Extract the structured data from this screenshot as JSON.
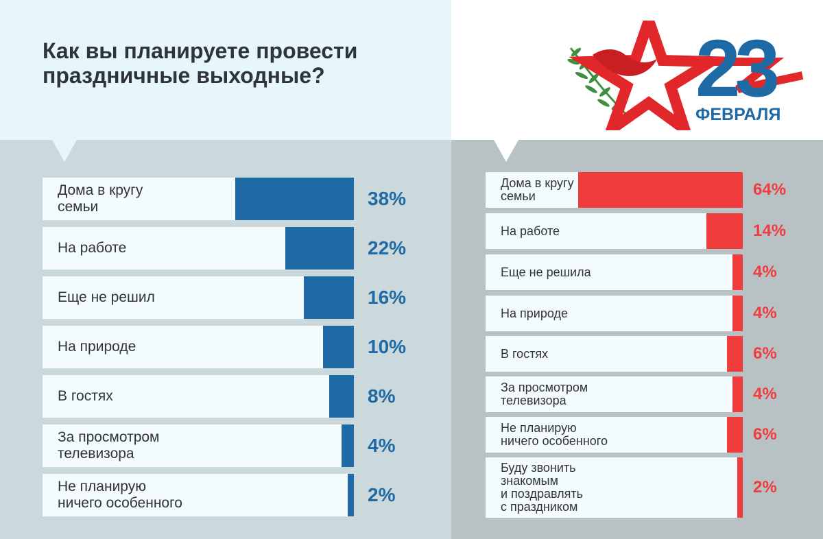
{
  "title": "Как вы планируете провести праздничные выходные?",
  "logo": {
    "number": "23",
    "month": "ФЕВРАЛЯ",
    "colors": {
      "red": "#e2272b",
      "blue": "#1d6aa5",
      "leaf": "#3e8f3e"
    }
  },
  "colors": {
    "left_accent": "#1d6aa5",
    "right_accent": "#f03c3c"
  },
  "chart_data": [
    {
      "type": "bar",
      "orientation": "horizontal",
      "categories": [
        "Дома в кругу\nсемьи",
        "На работе",
        "Еще не решил",
        "На природе",
        "В гостях",
        "За просмотром\nтелевизора",
        "Не планирую\nничего особенного"
      ],
      "values": [
        38,
        22,
        16,
        10,
        8,
        4,
        2
      ],
      "value_labels": [
        "38%",
        "22%",
        "16%",
        "10%",
        "8%",
        "4%",
        "2%"
      ],
      "unit": "%",
      "color": "#1d6aa5",
      "xlim": [
        0,
        100
      ]
    },
    {
      "type": "bar",
      "orientation": "horizontal",
      "categories": [
        "Дома в кругу\nсемьи",
        "На работе",
        "Еще не решила",
        "На природе",
        "В гостях",
        "За просмотром\nтелевизора",
        "Не планирую\nничего особенного",
        "Буду звонить\nзнакомым\nи поздравлять\nс праздником"
      ],
      "values": [
        64,
        14,
        4,
        4,
        6,
        4,
        6,
        2
      ],
      "value_labels": [
        "64%",
        "14%",
        "4%",
        "4%",
        "6%",
        "4%",
        "6%",
        "2%"
      ],
      "unit": "%",
      "color": "#f03c3c",
      "xlim": [
        0,
        100
      ]
    }
  ]
}
